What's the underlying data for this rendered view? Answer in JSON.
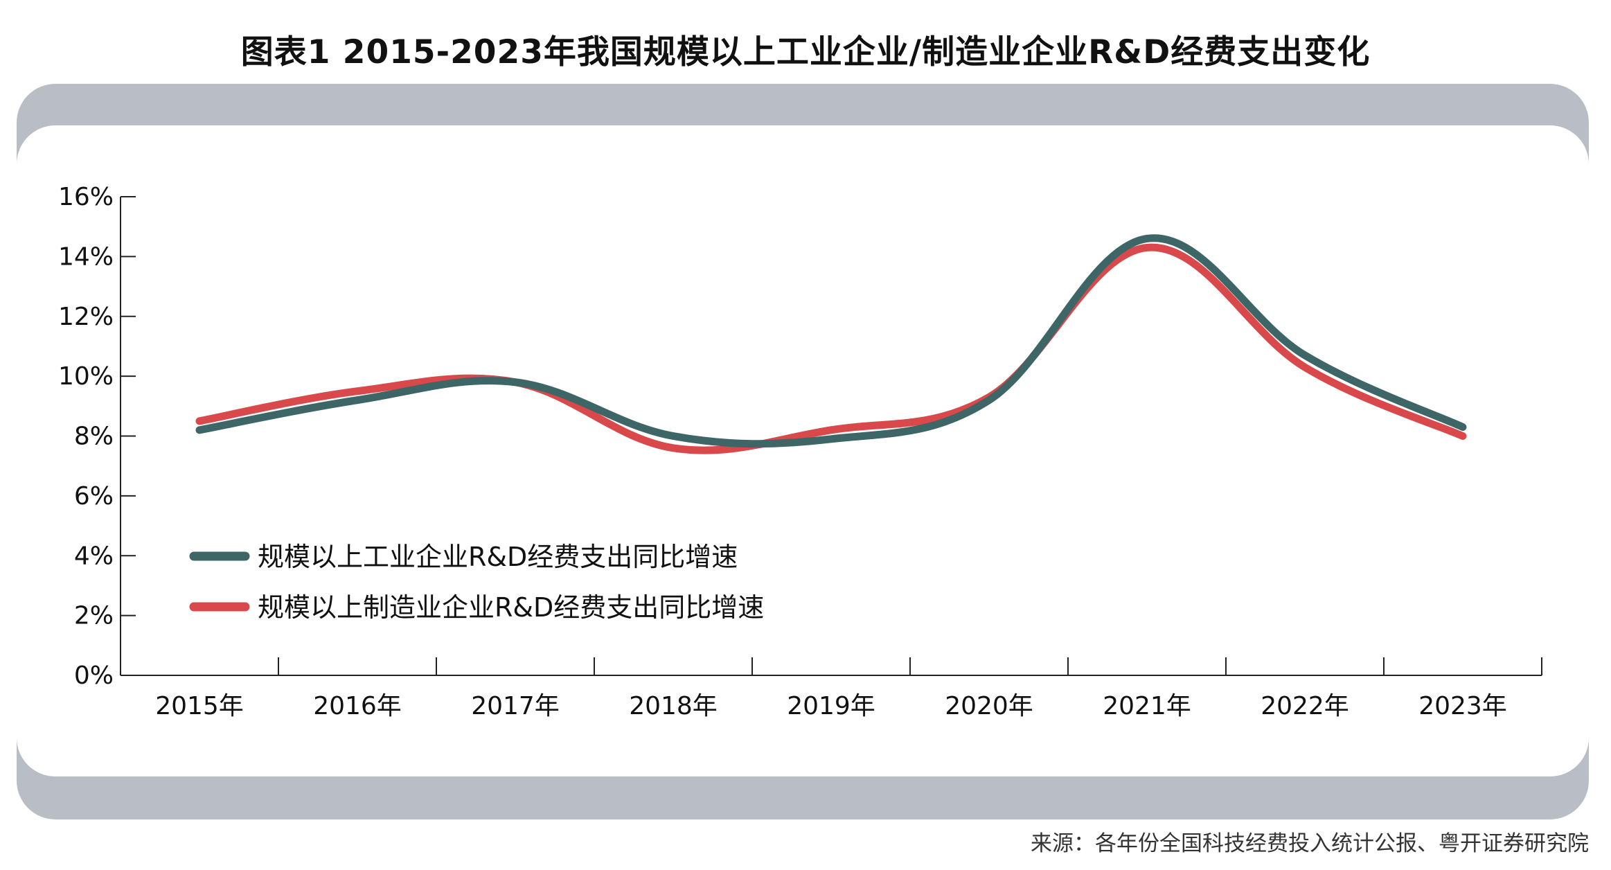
{
  "title": "图表1 2015-2023年我国规模以上工业企业/制造业企业R&D经费支出变化",
  "source": "来源：各年份全国科技经费投入统计公报、粤开证券研究院",
  "chart_data": {
    "type": "line",
    "title": "图表1 2015-2023年我国规模以上工业企业/制造业企业R&D经费支出变化",
    "categories": [
      "2015年",
      "2016年",
      "2017年",
      "2018年",
      "2019年",
      "2020年",
      "2021年",
      "2022年",
      "2023年"
    ],
    "ylim": [
      0,
      16
    ],
    "y_ticks": [
      "0%",
      "2%",
      "4%",
      "6%",
      "8%",
      "10%",
      "12%",
      "14%",
      "16%"
    ],
    "grid": false,
    "legend_position": "lower-left",
    "series": [
      {
        "name": "规模以上工业企业R&D经费支出同比增速",
        "color": "#3f6667",
        "values": [
          8.2,
          9.2,
          9.8,
          8.0,
          7.9,
          9.2,
          14.6,
          10.7,
          8.3
        ]
      },
      {
        "name": "规模以上制造业企业R&D经费支出同比增速",
        "color": "#d9484a",
        "values": [
          8.5,
          9.5,
          9.8,
          7.6,
          8.2,
          9.3,
          14.3,
          10.3,
          8.0
        ]
      }
    ]
  }
}
